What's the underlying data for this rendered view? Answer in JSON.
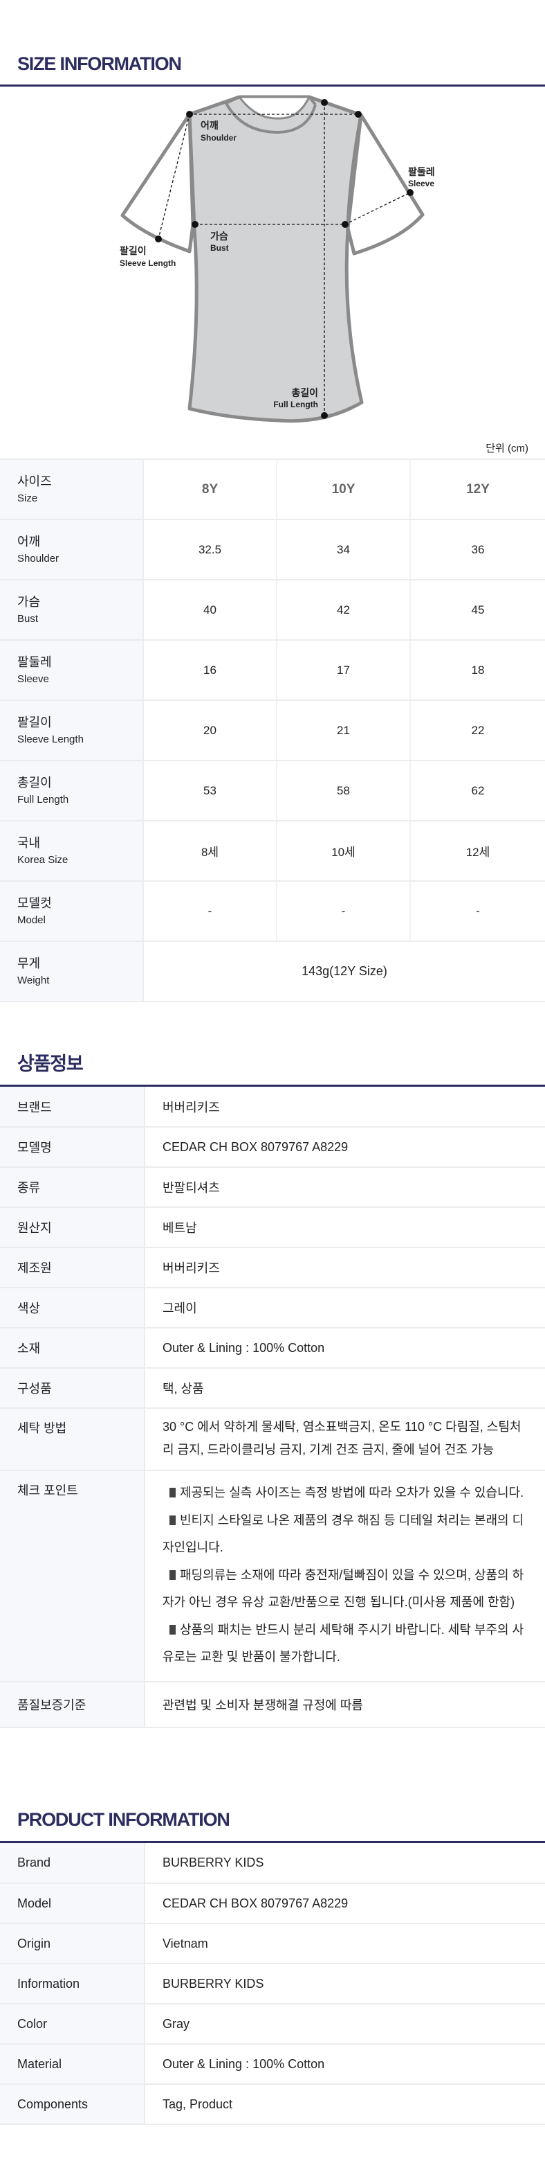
{
  "size_section": {
    "title": "SIZE INFORMATION",
    "unit": "단위 (cm)",
    "diagram_labels": {
      "shoulder_ko": "어깨",
      "shoulder_en": "Shoulder",
      "sleeve_ko": "팔둘레",
      "sleeve_en": "Sleeve",
      "sleeve_length_ko": "팔길이",
      "sleeve_length_en": "Sleeve Length",
      "bust_ko": "가슴",
      "bust_en": "Bust",
      "full_length_ko": "총길이",
      "full_length_en": "Full Length"
    },
    "sizes": [
      "8Y",
      "10Y",
      "12Y"
    ],
    "header": {
      "ko": "사이즈",
      "en": "Size"
    },
    "rows": [
      {
        "ko": "어깨",
        "en": "Shoulder",
        "values": [
          "32.5",
          "34",
          "36"
        ]
      },
      {
        "ko": "가슴",
        "en": "Bust",
        "values": [
          "40",
          "42",
          "45"
        ]
      },
      {
        "ko": "팔둘레",
        "en": "Sleeve",
        "values": [
          "16",
          "17",
          "18"
        ]
      },
      {
        "ko": "팔길이",
        "en": "Sleeve Length",
        "values": [
          "20",
          "21",
          "22"
        ]
      },
      {
        "ko": "총길이",
        "en": "Full Length",
        "values": [
          "53",
          "58",
          "62"
        ]
      },
      {
        "ko": "국내",
        "en": "Korea Size",
        "values": [
          "8세",
          "10세",
          "12세"
        ]
      },
      {
        "ko": "모델컷",
        "en": "Model",
        "values": [
          "-",
          "-",
          "-"
        ]
      }
    ],
    "weight": {
      "ko": "무게",
      "en": "Weight",
      "value": "143g(12Y Size)"
    },
    "colors": {
      "accent": "#2b2d5e",
      "shirt_fill": "#d2d3d5",
      "shirt_outline": "#8a8a8a"
    }
  },
  "product_info_ko": {
    "title": "상품정보",
    "rows": [
      {
        "label": "브랜드",
        "value": "버버리키즈"
      },
      {
        "label": "모델명",
        "value": "CEDAR CH BOX 8079767 A8229"
      },
      {
        "label": "종류",
        "value": "반팔티셔츠"
      },
      {
        "label": "원산지",
        "value": "베트남"
      },
      {
        "label": "제조원",
        "value": "버버리키즈"
      },
      {
        "label": "색상",
        "value": "그레이"
      },
      {
        "label": "소재",
        "value": "Outer & Lining : 100% Cotton"
      },
      {
        "label": "구성품",
        "value": "택, 상품"
      },
      {
        "label": "세탁 방법",
        "value": "30 °C 에서 약하게 물세탁, 염소표백금지, 온도 110 °C 다림질, 스팀처리 금지, 드라이클리닝 금지, 기계 건조 금지, 줄에 널어 건조 가능"
      }
    ],
    "check_point": {
      "label": "체크 포인트",
      "items": [
        "제공되는 실측 사이즈는 측정 방법에 따라 오차가 있을 수 있습니다.",
        "빈티지 스타일로 나온 제품의 경우 해짐 등 디테일 처리는 본래의 디자인입니다.",
        "패딩의류는 소재에 따라 충전재/털빠짐이 있을 수 있으며, 상품의 하자가 아닌 경우 유상 교환/반품으로 진행 됩니다.(미사용 제품에 한함)",
        "상품의 패치는 반드시 분리 세탁해 주시기 바랍니다. 세탁 부주의 사유로는 교환 및 반품이 불가합니다."
      ]
    },
    "quality": {
      "label": "품질보증기준",
      "value": "관련법 및 소비자 분쟁해결 규정에 따름"
    }
  },
  "product_info_en": {
    "title": "PRODUCT INFORMATION",
    "rows": [
      {
        "label": "Brand",
        "value": "BURBERRY KIDS"
      },
      {
        "label": "Model",
        "value": "CEDAR CH BOX 8079767 A8229"
      },
      {
        "label": "Origin",
        "value": "Vietnam"
      },
      {
        "label": "Information",
        "value": "BURBERRY KIDS"
      },
      {
        "label": "Color",
        "value": "Gray"
      },
      {
        "label": "Material",
        "value": "Outer & Lining : 100% Cotton"
      },
      {
        "label": "Components",
        "value": "Tag, Product"
      }
    ]
  }
}
